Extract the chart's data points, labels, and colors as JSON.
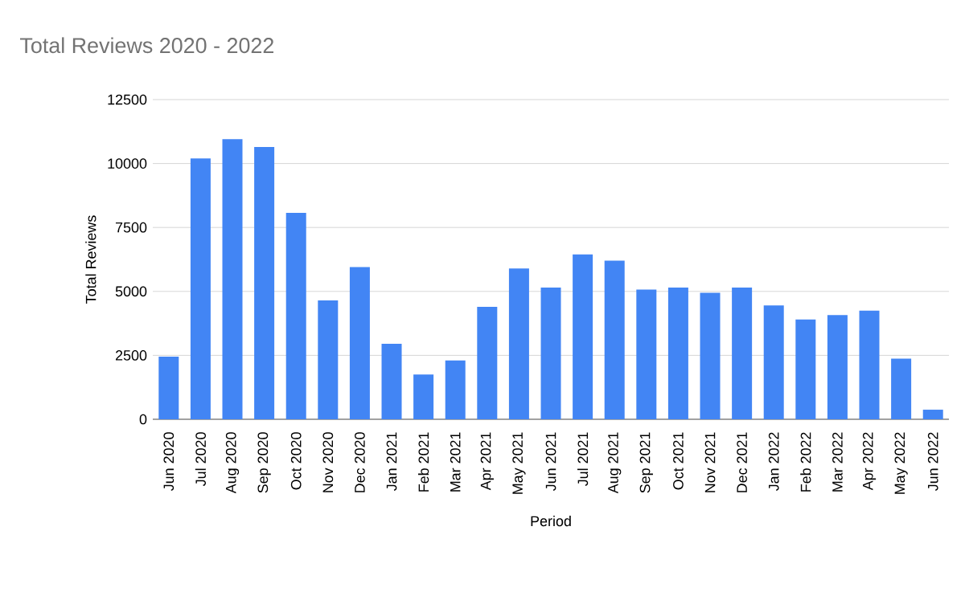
{
  "chart_data": {
    "type": "bar",
    "title": "Total Reviews 2020 - 2022",
    "xlabel": "Period",
    "ylabel": "Total Reviews",
    "categories": [
      "Jun 2020",
      "Jul 2020",
      "Aug 2020",
      "Sep 2020",
      "Oct 2020",
      "Nov 2020",
      "Dec 2020",
      "Jan 2021",
      "Feb 2021",
      "Mar 2021",
      "Apr 2021",
      "May 2021",
      "Jun 2021",
      "Jul 2021",
      "Aug 2021",
      "Sep 2021",
      "Oct 2021",
      "Nov 2021",
      "Dec 2021",
      "Jan 2022",
      "Feb 2022",
      "Mar 2022",
      "Apr 2022",
      "May 2022",
      "Jun 2022"
    ],
    "values": [
      2450,
      10200,
      10950,
      10650,
      8075,
      4650,
      5950,
      2950,
      1750,
      2300,
      4400,
      5900,
      5150,
      6450,
      6200,
      5075,
      5150,
      4950,
      5150,
      4450,
      3900,
      4075,
      4250,
      2375,
      375
    ],
    "color": "#4285f4",
    "ylim": [
      0,
      12500
    ],
    "yticks": [
      0,
      2500,
      5000,
      7500,
      10000,
      12500
    ],
    "grid": "y"
  }
}
